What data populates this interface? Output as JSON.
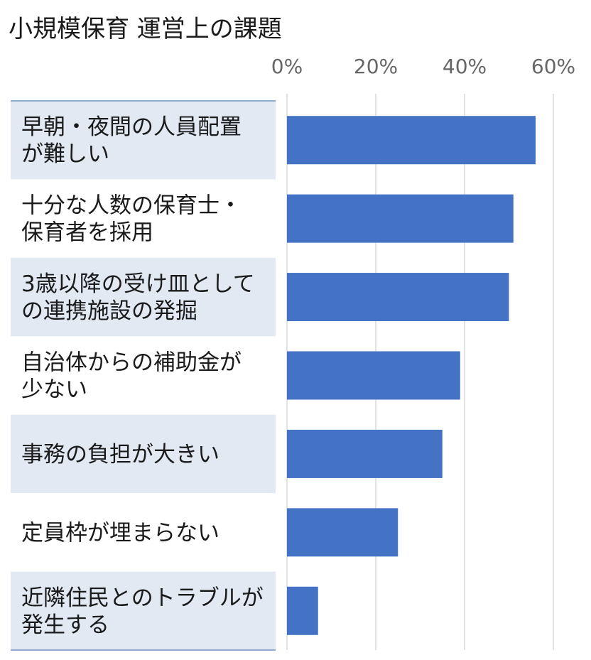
{
  "chart_data": {
    "type": "bar",
    "orientation": "horizontal",
    "title": "小規模保育 運営上の課題",
    "categories": [
      [
        "早朝・夜間の人員配置",
        "が難しい"
      ],
      [
        "十分な人数の保育士・",
        "保育者を採用"
      ],
      [
        "3歳以降の受け皿として",
        "の連携施設の発掘"
      ],
      [
        "自治体からの補助金が",
        "少ない"
      ],
      [
        "事務の負担が大きい"
      ],
      [
        "定員枠が埋まらない"
      ],
      [
        "近隣住民とのトラブルが",
        "発生する"
      ]
    ],
    "values": [
      56,
      51,
      50,
      39,
      35,
      25,
      7
    ],
    "xlim": [
      0,
      60
    ],
    "xticks": [
      0,
      20,
      40,
      60
    ],
    "xtick_labels": [
      "0%",
      "20%",
      "40%",
      "60%"
    ],
    "grid": true,
    "axis_position": "top",
    "colors": {
      "bar": "#4472c4",
      "band": "#e2e9f3",
      "grid": "#d9d9d9"
    }
  }
}
